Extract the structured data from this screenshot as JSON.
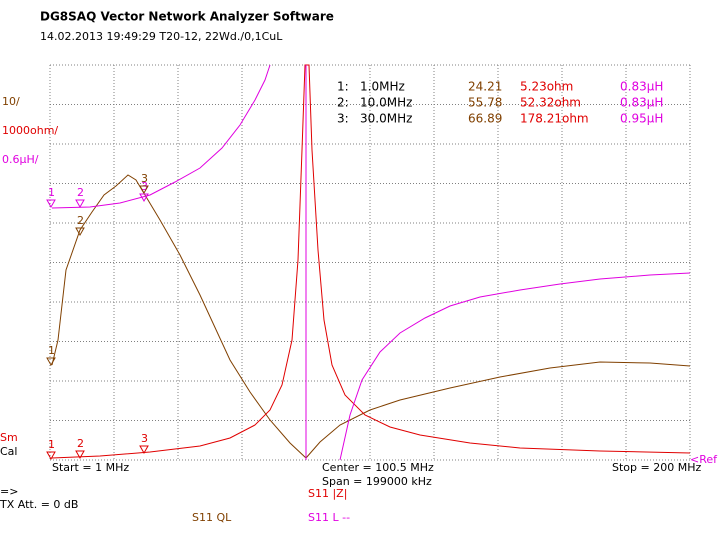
{
  "header": {
    "title": "DG8SAQ Vector Network Analyzer Software",
    "info": "14.02.2013   19:49:29   T20-12, 22Wd./0,1CuL"
  },
  "scales": {
    "ql": "10/",
    "z": "1000ohm/",
    "l": "0.6µH/"
  },
  "markers": {
    "labels": [
      "1",
      "2",
      "3"
    ],
    "rows": [
      [
        "1:",
        "1.0MHz",
        "24.21",
        "5.23ohm",
        "0.83µH"
      ],
      [
        "2:",
        "10.0MHz",
        "55.78",
        "52.32ohm",
        "0.83µH"
      ],
      [
        "3:",
        "30.0MHz",
        "66.89",
        "178.21ohm",
        "0.95µH"
      ]
    ]
  },
  "sweep": {
    "start": "Start = 1 MHz",
    "center": "Center = 100.5 MHz",
    "span": "Span = 199000 kHz",
    "stop": "Stop = 200 MHz"
  },
  "status": {
    "sm": "Sm",
    "cal": "Cal",
    "arrow": "=>",
    "tx": "TX Att.  = 0 dB",
    "ref": "<Ref"
  },
  "traces": {
    "z": "S11  |Z|",
    "ql": "S11   QL",
    "l": "S11   L --"
  }
}
